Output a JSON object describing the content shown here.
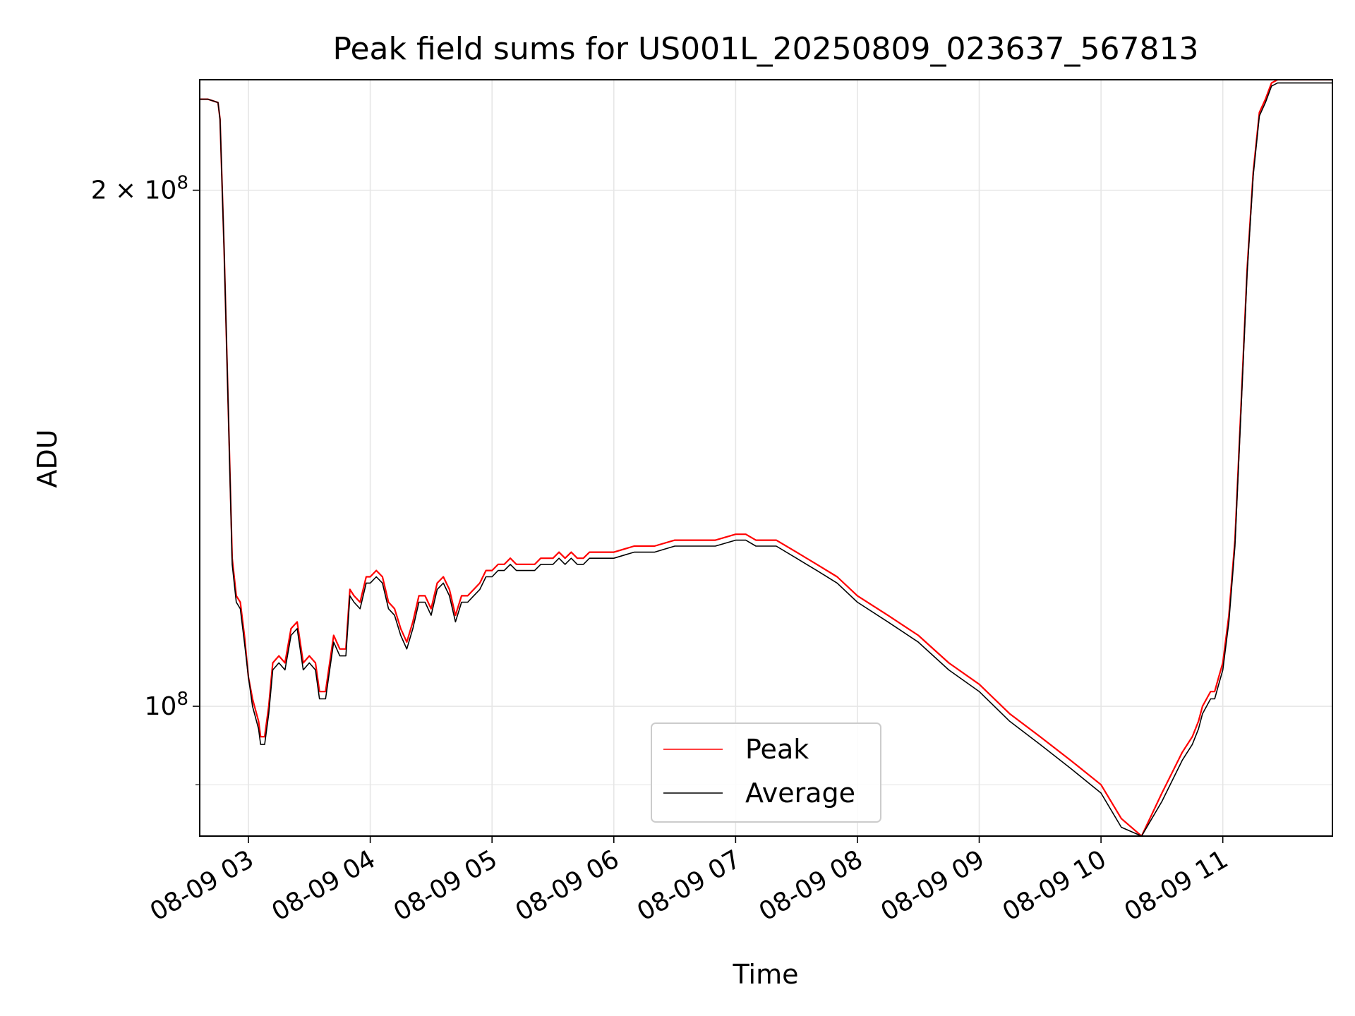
{
  "chart_data": {
    "type": "line",
    "title": "Peak field sums for US001L_20250809_023637_567813",
    "xlabel": "Time",
    "ylabel": "ADU",
    "x_ticks": [
      "08-09 03",
      "08-09 04",
      "08-09 05",
      "08-09 06",
      "08-09 07",
      "08-09 08",
      "08-09 09",
      "08-09 10",
      "08-09 11"
    ],
    "y_scale": "log",
    "y_ticks": [
      {
        "value": 200000000,
        "mantissa": "2",
        "exponent": "8",
        "label_style": "m_times_10"
      },
      {
        "value": 100000000,
        "mantissa": "",
        "exponent": "8",
        "label_style": "10"
      }
    ],
    "y_minor_ticks": [
      90000000
    ],
    "xlim": [
      "2025-08-09 02:36",
      "2025-08-09 11:54"
    ],
    "ylim": [
      84000000,
      232000000
    ],
    "grid": true,
    "legend_position": "lower center",
    "colors": {
      "Peak": "#ff0000",
      "Average": "#000000"
    },
    "series": [
      {
        "name": "Peak",
        "x": [
          "02:36",
          "02:40",
          "02:45",
          "02:46",
          "02:48",
          "02:50",
          "02:52",
          "02:54",
          "02:56",
          "02:58",
          "03:00",
          "03:02",
          "03:04",
          "03:05",
          "03:06",
          "03:08",
          "03:10",
          "03:12",
          "03:15",
          "03:18",
          "03:21",
          "03:24",
          "03:25",
          "03:27",
          "03:30",
          "03:33",
          "03:35",
          "03:38",
          "03:42",
          "03:45",
          "03:48",
          "03:50",
          "03:52",
          "03:55",
          "03:58",
          "04:00",
          "04:03",
          "04:06",
          "04:09",
          "04:12",
          "04:15",
          "04:18",
          "04:21",
          "04:24",
          "04:27",
          "04:30",
          "04:33",
          "04:36",
          "04:39",
          "04:42",
          "04:45",
          "04:48",
          "04:51",
          "04:54",
          "04:57",
          "05:00",
          "05:03",
          "05:06",
          "05:09",
          "05:12",
          "05:15",
          "05:18",
          "05:21",
          "05:24",
          "05:27",
          "05:30",
          "05:33",
          "05:36",
          "05:39",
          "05:42",
          "05:45",
          "05:48",
          "05:51",
          "05:54",
          "05:57",
          "06:00",
          "06:10",
          "06:20",
          "06:30",
          "06:40",
          "06:50",
          "07:00",
          "07:05",
          "07:10",
          "07:20",
          "07:30",
          "07:40",
          "07:50",
          "08:00",
          "08:15",
          "08:30",
          "08:45",
          "09:00",
          "09:15",
          "09:30",
          "09:45",
          "10:00",
          "10:10",
          "10:20",
          "10:30",
          "10:40",
          "10:45",
          "10:48",
          "10:50",
          "10:52",
          "10:54",
          "10:56",
          "10:58",
          "11:00",
          "11:03",
          "11:06",
          "11:09",
          "11:12",
          "11:15",
          "11:18",
          "11:21",
          "11:24",
          "11:27",
          "11:30",
          "11:33",
          "11:36",
          "11:39",
          "11:42",
          "11:45",
          "11:48",
          "11:50",
          "11:54"
        ],
        "values": [
          226,
          226,
          225,
          220,
          185,
          150,
          122,
          116,
          115,
          110,
          104,
          101,
          99,
          98,
          96,
          96,
          100,
          106,
          107,
          106,
          111,
          112,
          110,
          106,
          107,
          106,
          102,
          102,
          110,
          108,
          108,
          117,
          116,
          115,
          119,
          119,
          120,
          119,
          115,
          114,
          111,
          109,
          112,
          116,
          116,
          114,
          118,
          119,
          117,
          113,
          116,
          116,
          117,
          118,
          120,
          120,
          121,
          121,
          122,
          121,
          121,
          121,
          121,
          122,
          122,
          122,
          123,
          122,
          123,
          122,
          122,
          123,
          123,
          123,
          123,
          123,
          124,
          124,
          125,
          125,
          125,
          126,
          126,
          125,
          125,
          123,
          121,
          119,
          116,
          113,
          110,
          106,
          103,
          99,
          96,
          93,
          90,
          86,
          84,
          89,
          94,
          96,
          98,
          100,
          101,
          102,
          102,
          104,
          106,
          113,
          125,
          150,
          180,
          205,
          222,
          226,
          231,
          232,
          232,
          232,
          232,
          232,
          232,
          232,
          232,
          232,
          232
        ],
        "note_x_units": "time of day on 2025-08-09"
      },
      {
        "name": "Average",
        "x": [
          "02:36",
          "02:40",
          "02:45",
          "02:46",
          "02:48",
          "02:50",
          "02:52",
          "02:54",
          "02:56",
          "02:58",
          "03:00",
          "03:02",
          "03:04",
          "03:05",
          "03:06",
          "03:08",
          "03:10",
          "03:12",
          "03:15",
          "03:18",
          "03:21",
          "03:24",
          "03:25",
          "03:27",
          "03:30",
          "03:33",
          "03:35",
          "03:38",
          "03:42",
          "03:45",
          "03:48",
          "03:50",
          "03:52",
          "03:55",
          "03:58",
          "04:00",
          "04:03",
          "04:06",
          "04:09",
          "04:12",
          "04:15",
          "04:18",
          "04:21",
          "04:24",
          "04:27",
          "04:30",
          "04:33",
          "04:36",
          "04:39",
          "04:42",
          "04:45",
          "04:48",
          "04:51",
          "04:54",
          "04:57",
          "05:00",
          "05:03",
          "05:06",
          "05:09",
          "05:12",
          "05:15",
          "05:18",
          "05:21",
          "05:24",
          "05:27",
          "05:30",
          "05:33",
          "05:36",
          "05:39",
          "05:42",
          "05:45",
          "05:48",
          "05:51",
          "05:54",
          "05:57",
          "06:00",
          "06:10",
          "06:20",
          "06:30",
          "06:40",
          "06:50",
          "07:00",
          "07:05",
          "07:10",
          "07:20",
          "07:30",
          "07:40",
          "07:50",
          "08:00",
          "08:15",
          "08:30",
          "08:45",
          "09:00",
          "09:15",
          "09:30",
          "09:45",
          "10:00",
          "10:10",
          "10:20",
          "10:30",
          "10:40",
          "10:45",
          "10:48",
          "10:50",
          "10:52",
          "10:54",
          "10:56",
          "10:58",
          "11:00",
          "11:03",
          "11:06",
          "11:09",
          "11:12",
          "11:15",
          "11:18",
          "11:21",
          "11:24",
          "11:27",
          "11:30",
          "11:33",
          "11:36",
          "11:39",
          "11:42",
          "11:45",
          "11:48",
          "11:50",
          "11:54"
        ],
        "values": [
          226,
          226,
          225,
          220,
          185,
          150,
          121,
          115,
          114,
          109,
          104,
          100,
          98,
          97,
          95,
          95,
          99,
          105,
          106,
          105,
          110,
          111,
          109,
          105,
          106,
          105,
          101,
          101,
          109,
          107,
          107,
          116,
          115,
          114,
          118,
          118,
          119,
          118,
          114,
          113,
          110,
          108,
          111,
          115,
          115,
          113,
          117,
          118,
          116,
          112,
          115,
          115,
          116,
          117,
          119,
          119,
          120,
          120,
          121,
          120,
          120,
          120,
          120,
          121,
          121,
          121,
          122,
          121,
          122,
          121,
          121,
          122,
          122,
          122,
          122,
          122,
          123,
          123,
          124,
          124,
          124,
          125,
          125,
          124,
          124,
          122,
          120,
          118,
          115,
          112,
          109,
          105,
          102,
          98,
          95,
          92,
          89,
          85,
          84,
          88,
          93,
          95,
          97,
          99,
          100,
          101,
          101,
          103,
          105,
          112,
          124,
          149,
          179,
          204,
          221,
          225,
          230,
          231,
          231,
          231,
          231,
          231,
          231,
          231,
          231,
          231,
          231
        ]
      }
    ]
  }
}
